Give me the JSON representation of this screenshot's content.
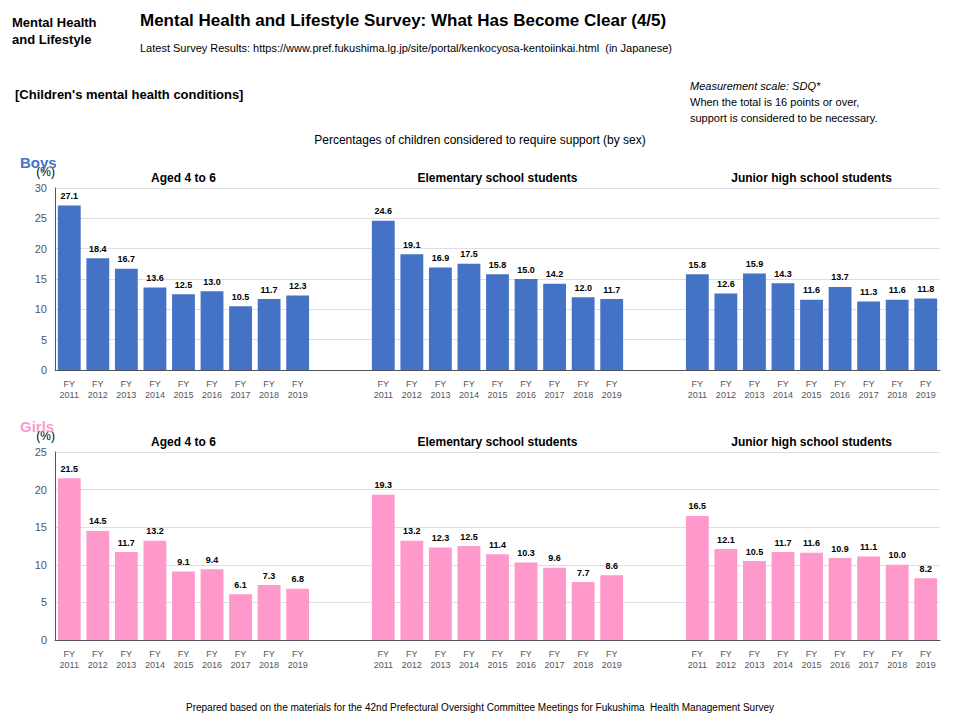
{
  "title": "Mental Health and Lifestyle Survey: What Has Become Clear (4/5)",
  "subtitle": "Latest Survey Results: https://www.pref.fukushima.lg.jp/site/portal/kenkocyosa-kentoiinkai.html  (in Japanese)",
  "annotations": [
    "Mental Health\nand Lifestyle",
    "[Children's mental health conditions]",
    "Measurement scale: SDQ*",
    "When the total is 16 points or over,",
    "support is considered to be necessary.",
    "Percentages of children considered to require support (by sex)",
    "Prepared based on the materials for the 42nd Prefectural Oversight Committee Meetings for Fukushima  Health Management Survey"
  ],
  "chart_data": [
    {
      "type": "bar",
      "title": "Boys",
      "ylabel": "(%)",
      "categories": [
        "FY\n2011",
        "FY\n2012",
        "FY\n2013",
        "FY\n2014",
        "FY\n2015",
        "FY\n2016",
        "FY\n2017",
        "FY\n2018",
        "FY\n2019",
        "FY\n2011",
        "FY\n2012",
        "FY\n2013",
        "FY\n2014",
        "FY\n2015",
        "FY\n2016",
        "FY\n2017",
        "FY\n2018",
        "FY\n2019",
        "FY\n2011",
        "FY\n2012",
        "FY\n2013",
        "FY\n2014",
        "FY\n2015",
        "FY\n2016",
        "FY\n2017",
        "FY\n2018",
        "FY\n2019"
      ],
      "values": [
        27.1,
        18.4,
        16.7,
        13.6,
        12.5,
        13.0,
        10.5,
        11.7,
        12.3,
        24.6,
        19.1,
        16.9,
        17.5,
        15.8,
        15.0,
        14.2,
        12.0,
        11.7,
        15.8,
        12.6,
        15.9,
        14.3,
        11.6,
        13.7,
        11.3,
        11.6,
        11.8
      ],
      "value_labels": [
        "27.1",
        "18.4",
        "16.7",
        "13.6",
        "12.5",
        "13.0",
        "10.5",
        "11.7",
        "12.3",
        "24.6",
        "19.1",
        "16.9",
        "17.5",
        "15.8",
        "15.0",
        "14.2",
        "12.0",
        "11.7",
        "15.8",
        "12.6",
        "15.9",
        "14.3",
        "11.6",
        "13.7",
        "11.3",
        "11.6",
        "11.8"
      ],
      "color": "#4472C4",
      "ylim": [
        0,
        30
      ],
      "yticks": [
        0,
        5,
        10,
        15,
        20,
        25,
        30
      ],
      "grid": true,
      "data_labels": true,
      "annotations": [
        "Aged 4 to 6",
        "Elementary school students",
        "Junior high school students"
      ]
    },
    {
      "type": "bar",
      "title": "Girls",
      "ylabel": "(%)",
      "categories": [
        "FY\n2011",
        "FY\n2012",
        "FY\n2013",
        "FY\n2014",
        "FY\n2015",
        "FY\n2016",
        "FY\n2017",
        "FY\n2018",
        "FY\n2019",
        "FY\n2011",
        "FY\n2012",
        "FY\n2013",
        "FY\n2014",
        "FY\n2015",
        "FY\n2016",
        "FY\n2017",
        "FY\n2018",
        "FY\n2019",
        "FY\n2011",
        "FY\n2012",
        "FY\n2013",
        "FY\n2014",
        "FY\n2015",
        "FY\n2016",
        "FY\n2017",
        "FY\n2018",
        "FY\n2019"
      ],
      "values": [
        21.5,
        14.5,
        11.7,
        13.2,
        9.1,
        9.4,
        6.1,
        7.3,
        6.8,
        19.3,
        13.2,
        12.3,
        12.5,
        11.4,
        10.3,
        9.6,
        7.7,
        8.6,
        16.5,
        12.1,
        10.5,
        11.7,
        11.6,
        10.9,
        11.1,
        10.0,
        8.2
      ],
      "value_labels": [
        "21.5",
        "14.5",
        "11.7",
        "13.2",
        "9.1",
        "9.4",
        "6.1",
        "7.3",
        "6.8",
        "19.3",
        "13.2",
        "12.3",
        "12.5",
        "11.4",
        "10.3",
        "9.6",
        "7.7",
        "8.6",
        "16.5",
        "12.1",
        "10.5",
        "11.7",
        "11.6",
        "10.9",
        "11.1",
        "10.0",
        "8.2"
      ],
      "color": "#FF99CC",
      "ylim": [
        0,
        25
      ],
      "yticks": [
        0,
        5,
        10,
        15,
        20,
        25
      ],
      "grid": true,
      "data_labels": true,
      "annotations": [
        "Aged 4 to 6",
        "Elementary school students",
        "Junior high school students"
      ]
    }
  ]
}
